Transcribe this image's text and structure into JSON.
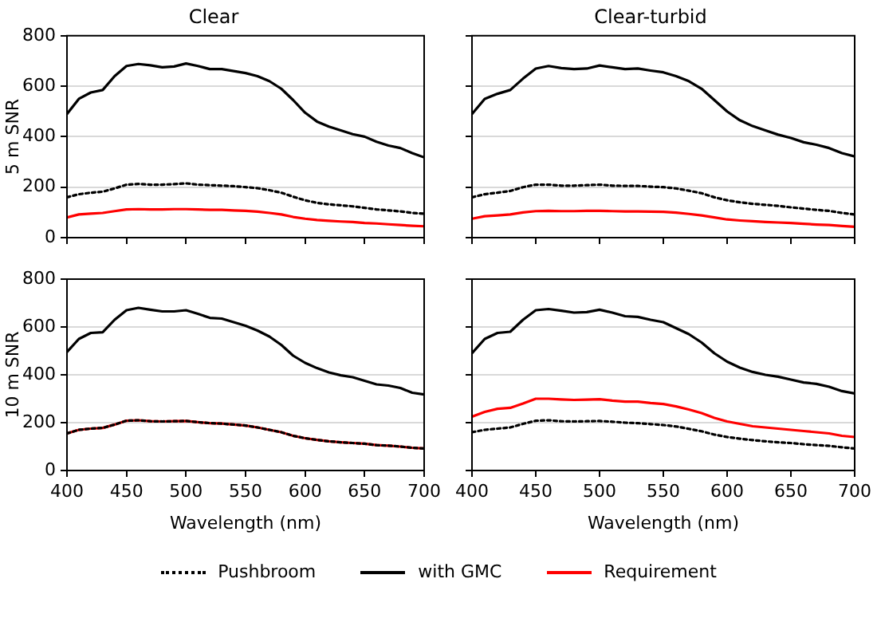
{
  "chart_data": [
    {
      "type": "line",
      "title": "Clear",
      "ylabel": "5 m SNR",
      "x": [
        400,
        410,
        420,
        430,
        440,
        450,
        460,
        470,
        480,
        490,
        500,
        510,
        520,
        530,
        540,
        550,
        560,
        570,
        580,
        590,
        600,
        610,
        620,
        630,
        640,
        650,
        660,
        670,
        680,
        690,
        700
      ],
      "xlim": [
        400,
        700
      ],
      "xticks": [
        400,
        450,
        500,
        550,
        600,
        650,
        700
      ],
      "ylim": [
        0,
        800
      ],
      "yticks": [
        0,
        200,
        400,
        600,
        800
      ],
      "grid": "y",
      "legend": "bottom",
      "tick_labels": "y",
      "marker": "none",
      "series": [
        {
          "name": "Pushbroom",
          "color": "#000000",
          "line_style": "dotted",
          "values": [
            160,
            172,
            178,
            182,
            195,
            210,
            213,
            210,
            210,
            212,
            215,
            210,
            208,
            206,
            204,
            200,
            196,
            188,
            178,
            162,
            148,
            138,
            132,
            128,
            124,
            118,
            112,
            108,
            104,
            98,
            95
          ]
        },
        {
          "name": "with GMC",
          "color": "#000000",
          "line_style": "solid",
          "values": [
            490,
            550,
            575,
            585,
            640,
            680,
            688,
            683,
            675,
            678,
            690,
            680,
            668,
            668,
            660,
            652,
            640,
            620,
            590,
            545,
            495,
            460,
            440,
            425,
            410,
            400,
            380,
            365,
            355,
            335,
            318
          ]
        },
        {
          "name": "Requirement",
          "color": "#ff0000",
          "line_style": "solid",
          "values": [
            80,
            92,
            95,
            98,
            105,
            112,
            113,
            112,
            112,
            113,
            113,
            112,
            110,
            110,
            108,
            106,
            103,
            98,
            92,
            82,
            75,
            70,
            67,
            64,
            62,
            58,
            56,
            53,
            50,
            47,
            45
          ]
        }
      ]
    },
    {
      "type": "line",
      "title": "Clear-turbid",
      "x": [
        400,
        410,
        420,
        430,
        440,
        450,
        460,
        470,
        480,
        490,
        500,
        510,
        520,
        530,
        540,
        550,
        560,
        570,
        580,
        590,
        600,
        610,
        620,
        630,
        640,
        650,
        660,
        670,
        680,
        690,
        700
      ],
      "xlim": [
        400,
        700
      ],
      "xticks": [
        400,
        450,
        500,
        550,
        600,
        650,
        700
      ],
      "ylim": [
        0,
        800
      ],
      "yticks": [
        0,
        200,
        400,
        600,
        800
      ],
      "grid": "y",
      "legend": false,
      "tick_labels": false,
      "marker": "none",
      "series": [
        {
          "color": "#000000",
          "line_style": "dotted",
          "values": [
            160,
            172,
            178,
            185,
            200,
            210,
            210,
            206,
            206,
            208,
            210,
            206,
            205,
            205,
            202,
            200,
            195,
            186,
            176,
            160,
            148,
            140,
            134,
            130,
            126,
            120,
            115,
            110,
            106,
            98,
            92
          ]
        },
        {
          "color": "#000000",
          "line_style": "solid",
          "values": [
            490,
            550,
            570,
            585,
            630,
            670,
            680,
            672,
            668,
            670,
            682,
            675,
            668,
            670,
            662,
            655,
            640,
            620,
            590,
            545,
            500,
            465,
            442,
            425,
            408,
            395,
            378,
            368,
            355,
            335,
            322
          ]
        },
        {
          "color": "#ff0000",
          "line_style": "solid",
          "values": [
            75,
            85,
            88,
            92,
            100,
            105,
            106,
            105,
            105,
            106,
            106,
            105,
            104,
            104,
            103,
            102,
            99,
            94,
            88,
            80,
            72,
            68,
            65,
            62,
            60,
            58,
            55,
            52,
            50,
            46,
            43
          ]
        }
      ]
    },
    {
      "type": "line",
      "xlabel": "Wavelength (nm)",
      "ylabel": "10 m SNR",
      "x": [
        400,
        410,
        420,
        430,
        440,
        450,
        460,
        470,
        480,
        490,
        500,
        510,
        520,
        530,
        540,
        550,
        560,
        570,
        580,
        590,
        600,
        610,
        620,
        630,
        640,
        650,
        660,
        670,
        680,
        690,
        700
      ],
      "xlim": [
        400,
        700
      ],
      "xticks": [
        400,
        450,
        500,
        550,
        600,
        650,
        700
      ],
      "ylim": [
        0,
        800
      ],
      "yticks": [
        0,
        200,
        400,
        600,
        800
      ],
      "grid": "y",
      "legend": false,
      "marker": "none",
      "series": [
        {
          "color": "#000000",
          "line_style": "dotted",
          "values": [
            155,
            170,
            175,
            178,
            192,
            208,
            210,
            206,
            205,
            206,
            207,
            202,
            198,
            196,
            192,
            188,
            180,
            170,
            160,
            145,
            135,
            128,
            122,
            118,
            115,
            112,
            106,
            104,
            100,
            95,
            92
          ]
        },
        {
          "color": "#000000",
          "line_style": "solid",
          "values": [
            495,
            550,
            575,
            578,
            630,
            670,
            680,
            672,
            665,
            665,
            670,
            655,
            638,
            635,
            620,
            605,
            585,
            560,
            525,
            480,
            450,
            428,
            410,
            398,
            390,
            375,
            360,
            355,
            345,
            325,
            318
          ]
        },
        {
          "color": "#ff0000",
          "line_style": "solid",
          "values": [
            155,
            170,
            175,
            178,
            192,
            208,
            210,
            206,
            205,
            206,
            207,
            202,
            198,
            196,
            192,
            188,
            180,
            170,
            160,
            145,
            135,
            128,
            122,
            118,
            115,
            112,
            106,
            104,
            100,
            95,
            92
          ]
        }
      ]
    },
    {
      "type": "line",
      "xlabel": "Wavelength (nm)",
      "x": [
        400,
        410,
        420,
        430,
        440,
        450,
        460,
        470,
        480,
        490,
        500,
        510,
        520,
        530,
        540,
        550,
        560,
        570,
        580,
        590,
        600,
        610,
        620,
        630,
        640,
        650,
        660,
        670,
        680,
        690,
        700
      ],
      "xlim": [
        400,
        700
      ],
      "xticks": [
        400,
        450,
        500,
        550,
        600,
        650,
        700
      ],
      "ylim": [
        0,
        800
      ],
      "yticks": [
        0,
        200,
        400,
        600,
        800
      ],
      "grid": "y",
      "legend": false,
      "tick_labels": "x",
      "marker": "none",
      "series": [
        {
          "color": "#000000",
          "line_style": "dotted",
          "values": [
            160,
            170,
            175,
            180,
            195,
            208,
            210,
            206,
            205,
            206,
            207,
            204,
            200,
            198,
            194,
            190,
            184,
            174,
            164,
            150,
            140,
            133,
            127,
            122,
            118,
            115,
            110,
            106,
            103,
            97,
            92
          ]
        },
        {
          "color": "#000000",
          "line_style": "solid",
          "values": [
            490,
            550,
            575,
            580,
            630,
            670,
            675,
            668,
            660,
            662,
            672,
            660,
            645,
            642,
            630,
            620,
            595,
            570,
            535,
            490,
            455,
            430,
            412,
            400,
            392,
            380,
            368,
            362,
            350,
            332,
            322
          ]
        },
        {
          "color": "#ff0000",
          "line_style": "solid",
          "values": [
            225,
            245,
            258,
            262,
            280,
            300,
            300,
            297,
            295,
            296,
            298,
            292,
            288,
            288,
            282,
            278,
            268,
            255,
            240,
            220,
            205,
            195,
            185,
            180,
            175,
            170,
            165,
            160,
            155,
            145,
            140
          ]
        }
      ]
    }
  ]
}
